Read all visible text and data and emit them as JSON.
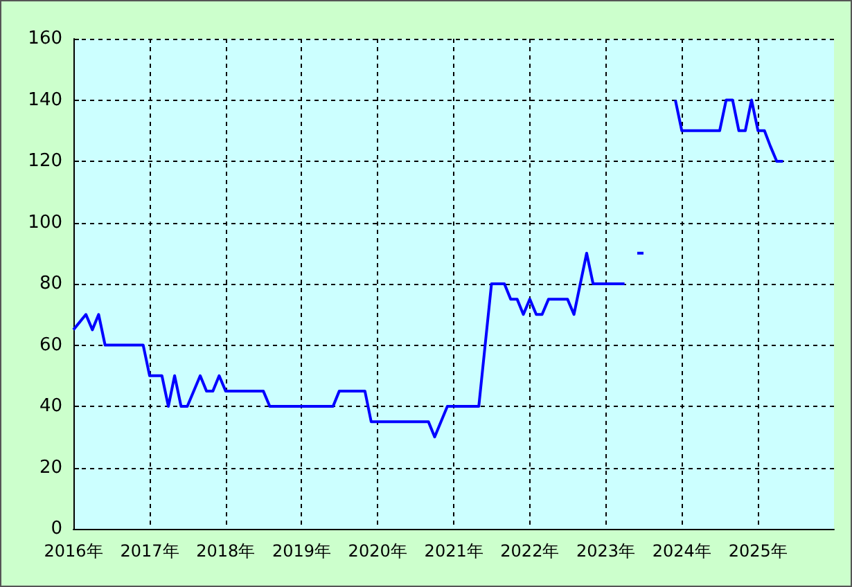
{
  "chart_data": {
    "type": "line",
    "x": [
      "2016-01",
      "2016-03",
      "2016-04",
      "2016-05",
      "2016-06",
      "2016-12",
      "2017-01",
      "2017-03",
      "2017-04",
      "2017-05",
      "2017-06",
      "2017-07",
      "2017-09",
      "2017-10",
      "2017-11",
      "2017-12",
      "2018-01",
      "2018-07",
      "2018-08",
      "2019-06",
      "2019-07",
      "2019-11",
      "2019-12",
      "2020-09",
      "2020-10",
      "2020-12",
      "2021-05",
      "2021-07",
      "2021-09",
      "2021-10",
      "2021-11",
      "2021-12",
      "2022-01",
      "2022-02",
      "2022-03",
      "2022-04",
      "2022-07",
      "2022-08",
      "2022-10",
      "2022-11",
      "2023-04",
      "2023-05",
      "2023-06",
      "2023-07",
      "2023-08",
      "2023-12",
      "2024-01",
      "2024-07",
      "2024-08",
      "2024-09",
      "2024-10",
      "2024-11",
      "2024-12",
      "2025-01",
      "2025-02",
      "2025-03",
      "2025-04",
      "2025-05"
    ],
    "series": [
      {
        "color": "#0000ff",
        "values": [
          65,
          70,
          65,
          70,
          60,
          60,
          50,
          50,
          40,
          50,
          40,
          40,
          50,
          45,
          45,
          50,
          45,
          45,
          40,
          40,
          45,
          45,
          35,
          35,
          30,
          40,
          40,
          80,
          80,
          75,
          75,
          70,
          75,
          70,
          70,
          75,
          75,
          70,
          90,
          80,
          80,
          null,
          90,
          90,
          null,
          140,
          130,
          130,
          140,
          140,
          130,
          130,
          140,
          130,
          130,
          125,
          120,
          120
        ]
      }
    ],
    "xlim": [
      "2016-01",
      "2026-01"
    ],
    "xticks": [
      {
        "value": "2016",
        "label": "2016年"
      },
      {
        "value": "2017",
        "label": "2017年"
      },
      {
        "value": "2018",
        "label": "2018年"
      },
      {
        "value": "2019",
        "label": "2019年"
      },
      {
        "value": "2020",
        "label": "2020年"
      },
      {
        "value": "2021",
        "label": "2021年"
      },
      {
        "value": "2022",
        "label": "2022年"
      },
      {
        "value": "2023",
        "label": "2023年"
      },
      {
        "value": "2024",
        "label": "2024年"
      },
      {
        "value": "2025",
        "label": "2025年"
      }
    ],
    "ylim": [
      0,
      160
    ],
    "yticks": [
      0,
      20,
      40,
      60,
      80,
      100,
      120,
      140,
      160
    ],
    "grid": true,
    "marker": "none",
    "line_style": "solid"
  }
}
